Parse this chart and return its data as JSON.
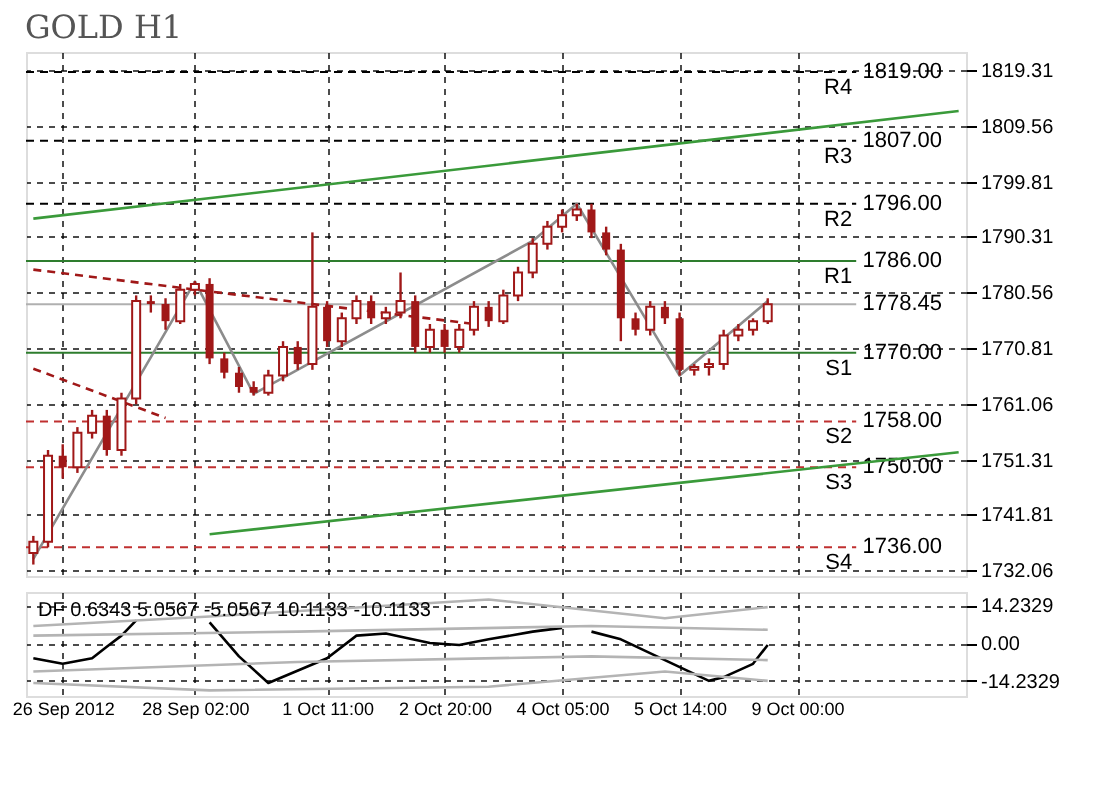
{
  "chart_data": [
    {
      "type": "candlestick",
      "title": "GOLD H1",
      "categories": [
        null,
        null,
        null,
        null,
        null,
        null,
        null,
        null,
        null,
        null,
        null,
        null,
        null,
        null,
        null,
        null,
        null,
        null,
        null,
        null,
        null,
        null,
        null,
        null,
        null,
        null,
        null,
        null,
        null,
        null,
        null,
        null,
        null,
        null,
        null,
        null,
        null,
        null,
        null,
        null,
        null,
        null,
        null,
        null,
        null,
        null,
        null,
        null,
        null,
        null,
        null,
        null,
        null,
        null,
        null,
        null,
        null,
        null,
        null,
        null,
        null,
        null,
        null,
        null
      ],
      "ohlc": [
        [
          1735,
          1738,
          1733,
          1737
        ],
        [
          1737,
          1753,
          1736,
          1752
        ],
        [
          1752,
          1754,
          1748,
          1750
        ],
        [
          1750,
          1757,
          1749,
          1756
        ],
        [
          1756,
          1760,
          1755,
          1759
        ],
        [
          1759,
          1760,
          1752,
          1753
        ],
        [
          1753,
          1763,
          1752,
          1762
        ],
        [
          1762,
          1780,
          1761,
          1779
        ],
        [
          1779,
          1780,
          1777,
          1778.5
        ],
        [
          1778.5,
          1779.5,
          1774,
          1775.5
        ],
        [
          1775.5,
          1782,
          1775,
          1781
        ],
        [
          1781,
          1782.5,
          1780,
          1782
        ],
        [
          1782,
          1783,
          1768,
          1769
        ],
        [
          1769,
          1770,
          1765.5,
          1766.5
        ],
        [
          1766.5,
          1767.5,
          1763,
          1764
        ],
        [
          1764,
          1765,
          1762.5,
          1763
        ],
        [
          1763,
          1767,
          1762.5,
          1766
        ],
        [
          1766,
          1772,
          1765,
          1771
        ],
        [
          1771,
          1772,
          1767,
          1768
        ],
        [
          1768,
          1791,
          1767,
          1778
        ],
        [
          1778,
          1779,
          1771,
          1772
        ],
        [
          1772,
          1777,
          1771,
          1776
        ],
        [
          1776,
          1780,
          1775,
          1779
        ],
        [
          1779,
          1780,
          1775,
          1776
        ],
        [
          1776,
          1778,
          1775,
          1777
        ],
        [
          1777,
          1784,
          1776,
          1779
        ],
        [
          1779,
          1780,
          1770,
          1771
        ],
        [
          1771,
          1775,
          1770,
          1774
        ],
        [
          1774,
          1775,
          1770,
          1771
        ],
        [
          1771,
          1775,
          1770,
          1774
        ],
        [
          1774,
          1779,
          1773,
          1778
        ],
        [
          1778,
          1779,
          1774.5,
          1775.5
        ],
        [
          1775.5,
          1781,
          1775,
          1780
        ],
        [
          1780,
          1785,
          1779,
          1784
        ],
        [
          1784,
          1790,
          1783,
          1789
        ],
        [
          1789,
          1793,
          1788,
          1792
        ],
        [
          1792,
          1795,
          1791,
          1794
        ],
        [
          1794,
          1796,
          1793,
          1795
        ],
        [
          1795,
          1796,
          1790,
          1791
        ],
        [
          1791,
          1792,
          1787,
          1788
        ],
        [
          1788,
          1789,
          1772,
          1776
        ],
        [
          1776,
          1777,
          1773,
          1774
        ],
        [
          1774,
          1779,
          1773,
          1778
        ],
        [
          1778,
          1779,
          1775,
          1776
        ],
        [
          1776,
          1777,
          1766,
          1767
        ],
        [
          1767,
          1768,
          1766,
          1767.5
        ],
        [
          1767.5,
          1769,
          1766,
          1768
        ],
        [
          1768,
          1774,
          1767,
          1773
        ],
        [
          1773,
          1775,
          1772,
          1774
        ],
        [
          1774,
          1776,
          1773,
          1775.5
        ],
        [
          1775.5,
          1779.5,
          1775,
          1778.45
        ],
        null,
        null,
        null,
        null,
        null,
        null,
        null,
        null,
        null,
        null,
        null,
        null,
        null
      ],
      "color": "#a01818",
      "series": [
        {
          "type": "line",
          "color": "#3a9a3a",
          "values": [
            1793.4,
            null,
            null,
            null,
            null,
            null,
            null,
            null,
            null,
            null,
            null,
            null,
            null,
            null,
            null,
            null,
            null,
            null,
            null,
            null,
            null,
            null,
            null,
            null,
            null,
            null,
            null,
            null,
            null,
            null,
            null,
            null,
            null,
            null,
            null,
            null,
            null,
            null,
            null,
            null,
            null,
            null,
            null,
            null,
            null,
            null,
            null,
            null,
            null,
            null,
            null,
            null,
            null,
            null,
            null,
            null,
            null,
            null,
            null,
            null,
            null,
            null,
            null,
            1812.2
          ]
        },
        {
          "type": "line",
          "color": "#3a9a3a",
          "values": [
            null,
            null,
            null,
            null,
            null,
            null,
            null,
            null,
            null,
            null,
            null,
            null,
            1738.3,
            null,
            null,
            null,
            null,
            null,
            null,
            null,
            null,
            null,
            null,
            null,
            null,
            null,
            null,
            null,
            null,
            null,
            null,
            null,
            null,
            null,
            null,
            null,
            null,
            null,
            null,
            null,
            null,
            null,
            null,
            null,
            null,
            null,
            null,
            null,
            null,
            null,
            null,
            null,
            null,
            null,
            null,
            null,
            null,
            null,
            null,
            null,
            null,
            null,
            null,
            1752.6
          ]
        },
        {
          "type": "line",
          "color": "#8c8c8c",
          "values": [
            1734,
            null,
            null,
            null,
            null,
            null,
            null,
            null,
            null,
            null,
            null,
            1782.4,
            null,
            null,
            null,
            1762.8,
            null,
            null,
            null,
            null,
            null,
            null,
            null,
            null,
            null,
            null,
            null,
            null,
            null,
            null,
            null,
            null,
            null,
            null,
            1789.5,
            null,
            null,
            1796,
            null,
            null,
            null,
            null,
            null,
            null,
            1766,
            null,
            null,
            null,
            null,
            null,
            1779,
            null,
            null,
            null,
            null,
            null,
            null,
            null,
            null,
            null,
            null,
            null,
            null,
            null
          ]
        },
        {
          "type": "line",
          "color": "#a01818",
          "line_style": "dashed",
          "values": [
            1784.5,
            null,
            null,
            null,
            null,
            null,
            null,
            null,
            null,
            null,
            null,
            null,
            null,
            null,
            null,
            null,
            null,
            null,
            null,
            null,
            null,
            null,
            null,
            null,
            null,
            null,
            null,
            null,
            null,
            null,
            1775,
            null,
            null,
            null,
            null,
            null,
            null,
            null,
            null,
            null,
            null,
            null,
            null,
            null,
            null,
            null,
            null,
            null,
            null,
            null,
            null,
            null,
            null,
            null,
            null,
            null,
            null,
            null,
            null,
            null,
            null,
            null,
            null,
            null
          ]
        },
        {
          "type": "line",
          "color": "#a01818",
          "line_style": "dashed",
          "values": [
            1767.2,
            null,
            null,
            null,
            null,
            null,
            null,
            null,
            null,
            1758.6,
            null,
            null,
            null,
            null,
            null,
            null,
            null,
            null,
            null,
            null,
            null,
            null,
            null,
            null,
            null,
            null,
            null,
            null,
            null,
            null,
            null,
            null,
            null,
            null,
            null,
            null,
            null,
            null,
            null,
            null,
            null,
            null,
            null,
            null,
            null,
            null,
            null,
            null,
            null,
            null,
            null,
            null,
            null,
            null,
            null,
            null,
            null,
            null,
            null,
            null,
            null,
            null,
            null,
            null
          ]
        }
      ],
      "ylim": [
        1731,
        1822.5
      ],
      "yticks": [
        1732.06,
        1741.81,
        1751.31,
        1761.06,
        1770.81,
        1780.56,
        1790.31,
        1799.81,
        1809.56,
        1819.31
      ],
      "tick_labels": "y",
      "grid": true,
      "ref_lines": [
        {
          "axis": "y",
          "value": 1819,
          "label": "1819.00",
          "color": "#000000",
          "line_style": "dashed"
        },
        {
          "axis": "y",
          "value": 1807,
          "label": "1807.00",
          "color": "#000000",
          "line_style": "dashed"
        },
        {
          "axis": "y",
          "value": 1796,
          "label": "1796.00",
          "color": "#000000",
          "line_style": "dashed"
        },
        {
          "axis": "y",
          "value": 1786,
          "label": "1786.00",
          "color": "#2e7d2e",
          "line_style": "solid"
        },
        {
          "axis": "y",
          "value": 1770,
          "label": "1770.00",
          "color": "#2e7d2e",
          "line_style": "solid"
        },
        {
          "axis": "y",
          "value": 1758,
          "label": "1758.00",
          "color": "#c03030",
          "line_style": "dashed"
        },
        {
          "axis": "y",
          "value": 1750,
          "label": "1750.00",
          "color": "#c03030",
          "line_style": "dashed"
        },
        {
          "axis": "y",
          "value": 1736,
          "label": "1736.00",
          "color": "#c03030",
          "line_style": "dashed"
        },
        {
          "axis": "y",
          "value": 1778.45,
          "label": "1778.45",
          "color": "#b0b0b0",
          "line_style": "solid"
        }
      ],
      "annotations": [
        "R4",
        "R3",
        "R2",
        "R1",
        "S1",
        "S2",
        "S3",
        "S4"
      ]
    },
    {
      "type": "line",
      "categories": [
        null,
        null,
        "26 Sep 2012",
        null,
        null,
        null,
        null,
        null,
        null,
        null,
        null,
        "28 Sep 02:00",
        null,
        null,
        null,
        null,
        null,
        null,
        null,
        null,
        "1 Oct 11:00",
        null,
        null,
        null,
        null,
        null,
        null,
        null,
        "2 Oct 20:00",
        null,
        null,
        null,
        null,
        null,
        null,
        null,
        "4 Oct 05:00",
        null,
        null,
        null,
        null,
        null,
        null,
        null,
        "5 Oct 14:00",
        null,
        null,
        null,
        null,
        null,
        null,
        null,
        "9 Oct 00:00",
        null,
        null,
        null,
        null,
        null,
        null,
        null,
        null,
        null,
        null,
        null
      ],
      "series": [
        {
          "color": "#000000",
          "values": [
            -5.7,
            null,
            -7.8,
            null,
            -5.7,
            -1.4,
            2.8,
            8.5,
            null,
            null,
            null,
            null,
            null,
            null,
            null,
            null,
            null,
            null,
            null,
            null,
            null,
            null,
            null,
            null,
            null,
            null,
            null,
            null,
            null,
            null,
            null,
            null,
            null,
            null,
            null,
            null,
            null,
            null,
            null,
            null,
            null,
            null,
            null,
            null,
            null,
            null,
            null,
            null,
            null,
            null,
            null,
            null,
            null,
            null,
            null,
            null,
            null,
            null,
            null,
            null,
            null,
            null,
            null,
            null
          ]
        },
        {
          "color": "#000000",
          "values": [
            null,
            null,
            null,
            null,
            null,
            null,
            null,
            null,
            null,
            null,
            null,
            null,
            7.8,
            null,
            -5,
            null,
            -15,
            null,
            null,
            null,
            -5.7,
            null,
            2.8,
            null,
            3.6,
            null,
            null,
            0,
            null,
            -0.7,
            null,
            1.4,
            null,
            null,
            4.3,
            null,
            5.7,
            null,
            null,
            null,
            null,
            null,
            null,
            null,
            null,
            null,
            null,
            null,
            null,
            null,
            null,
            null,
            null,
            null,
            null,
            null,
            null,
            null,
            null,
            null,
            null,
            null,
            null,
            null
          ]
        },
        {
          "color": "#000000",
          "values": [
            null,
            null,
            null,
            null,
            null,
            null,
            null,
            null,
            null,
            null,
            null,
            null,
            null,
            null,
            null,
            null,
            null,
            null,
            null,
            null,
            null,
            null,
            null,
            null,
            null,
            null,
            null,
            null,
            null,
            null,
            null,
            null,
            null,
            null,
            null,
            null,
            null,
            null,
            4.3,
            null,
            1.4,
            null,
            null,
            -6.4,
            null,
            null,
            -14.2,
            -12.8,
            null,
            -7.8,
            -0.7,
            null,
            null,
            null,
            null,
            null,
            null,
            null,
            null,
            null,
            null,
            null,
            null,
            null
          ]
        },
        {
          "color": "#b4b4b4",
          "values": [
            6.4,
            null,
            null,
            null,
            null,
            null,
            null,
            null,
            null,
            null,
            null,
            null,
            10,
            null,
            null,
            null,
            null,
            null,
            null,
            null,
            null,
            null,
            null,
            null,
            null,
            null,
            null,
            null,
            null,
            null,
            null,
            16.4,
            null,
            null,
            null,
            null,
            null,
            null,
            null,
            null,
            null,
            null,
            null,
            9.3,
            null,
            null,
            null,
            null,
            null,
            null,
            13.5,
            null,
            null,
            null,
            null,
            null,
            null,
            null,
            null,
            null,
            null,
            null,
            null,
            null
          ]
        },
        {
          "color": "#b4b4b4",
          "values": [
            2.8,
            null,
            null,
            null,
            null,
            null,
            null,
            null,
            null,
            null,
            null,
            null,
            null,
            null,
            null,
            null,
            null,
            null,
            4.3,
            null,
            null,
            null,
            null,
            null,
            null,
            null,
            null,
            null,
            null,
            null,
            null,
            null,
            null,
            null,
            null,
            null,
            null,
            null,
            6.4,
            null,
            null,
            null,
            null,
            null,
            null,
            null,
            null,
            null,
            null,
            null,
            5,
            null,
            null,
            null,
            null,
            null,
            null,
            null,
            null,
            null,
            null,
            null,
            null,
            null
          ]
        },
        {
          "color": "#b4b4b4",
          "values": [
            -10.7,
            null,
            null,
            null,
            null,
            null,
            null,
            null,
            null,
            null,
            null,
            null,
            null,
            null,
            null,
            null,
            null,
            null,
            -7.1,
            null,
            null,
            null,
            null,
            null,
            null,
            null,
            null,
            null,
            null,
            null,
            null,
            null,
            null,
            null,
            null,
            null,
            null,
            null,
            -5,
            null,
            null,
            null,
            null,
            null,
            null,
            null,
            null,
            null,
            null,
            null,
            -6.4,
            null,
            null,
            null,
            null,
            null,
            null,
            null,
            null,
            null,
            null,
            null,
            null,
            null
          ]
        },
        {
          "color": "#b4b4b4",
          "values": [
            -15,
            null,
            null,
            null,
            null,
            null,
            null,
            null,
            null,
            null,
            null,
            null,
            -17.8,
            null,
            null,
            null,
            null,
            null,
            null,
            null,
            null,
            null,
            null,
            null,
            null,
            null,
            null,
            null,
            null,
            null,
            null,
            -16.4,
            null,
            null,
            null,
            null,
            null,
            null,
            null,
            null,
            null,
            null,
            null,
            -10.7,
            null,
            null,
            null,
            null,
            null,
            null,
            -14.2,
            null,
            null,
            null,
            null,
            null,
            null,
            null,
            null,
            null,
            null,
            null,
            null,
            null
          ]
        }
      ],
      "ylim": [
        -19.9,
        19.2
      ],
      "yticks": [
        14.2329,
        {
          "value": 0,
          "label": "0.00"
        },
        -14.2329
      ],
      "grid": true,
      "annotations": [
        "DF 0.6343 5.0567 -5.0567 10.1133 -10.1133"
      ]
    }
  ]
}
